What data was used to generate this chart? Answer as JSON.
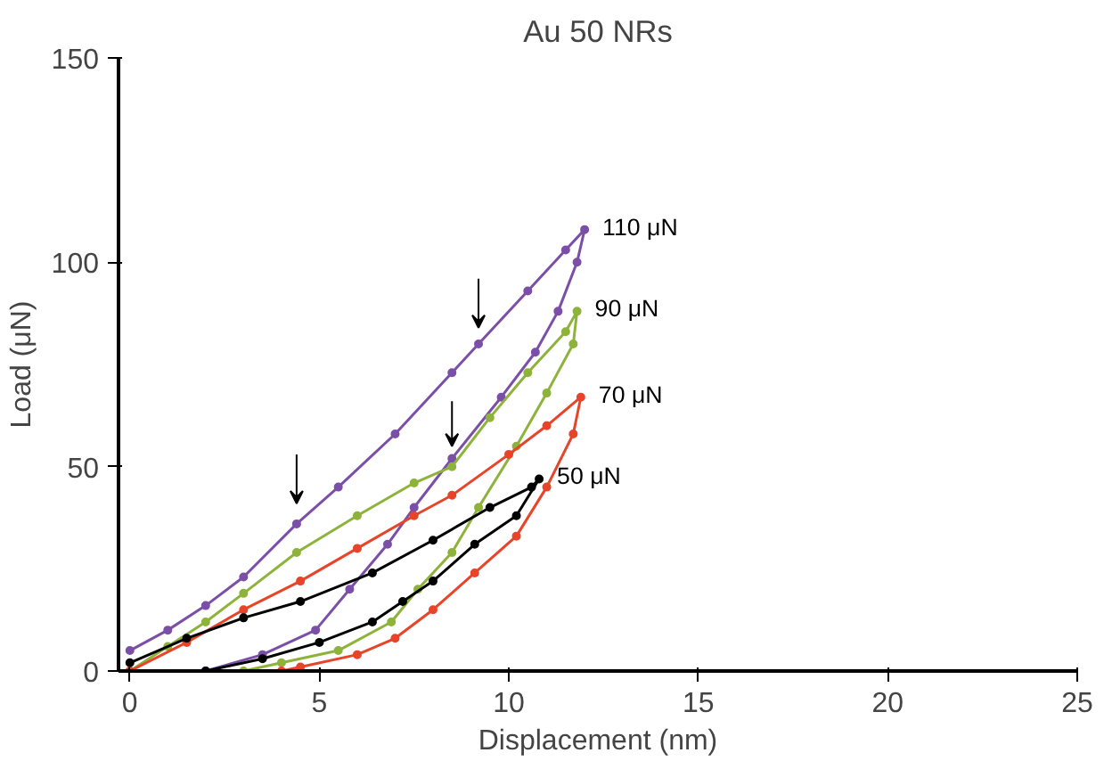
{
  "chart_data": {
    "type": "line",
    "title": "Au 50 NRs",
    "xlabel": "Displacement (nm)",
    "ylabel": "Load (μN)",
    "xlim": [
      -0.3,
      25
    ],
    "xticks": [
      0,
      5,
      10,
      15,
      20,
      25
    ],
    "ylim": [
      0,
      150
    ],
    "yticks": [
      0,
      50,
      100,
      150
    ],
    "grid": false,
    "legend": false,
    "marker": "circle",
    "series": [
      {
        "name": "110 μN",
        "color": "#7b4fa8",
        "x": [
          0,
          1,
          2,
          3,
          4.4,
          5.5,
          7,
          8.5,
          9.2,
          10.5,
          11.5,
          12,
          11.8,
          11.3,
          10.7,
          9.8,
          8.5,
          7.5,
          6.8,
          5.8,
          4.9,
          3.5,
          2
        ],
        "values": [
          5,
          10,
          16,
          23,
          36,
          45,
          58,
          73,
          80,
          93,
          103,
          108,
          100,
          88,
          78,
          67,
          52,
          40,
          31,
          20,
          10,
          4,
          0
        ]
      },
      {
        "name": "90 μN",
        "color": "#8db33a",
        "x": [
          0,
          1,
          2,
          3,
          4.4,
          6,
          7.5,
          8.5,
          9.5,
          10.5,
          11.5,
          11.8,
          11.7,
          11,
          10.2,
          9.2,
          8.5,
          7.6,
          6.9,
          5.5,
          4,
          3
        ],
        "values": [
          0,
          6,
          12,
          19,
          29,
          38,
          46,
          50,
          62,
          73,
          83,
          88,
          80,
          68,
          55,
          40,
          29,
          20,
          12,
          5,
          2,
          0
        ]
      },
      {
        "name": "70 μN",
        "color": "#e8442a",
        "x": [
          0,
          1.5,
          3,
          4.5,
          6,
          7.5,
          8.5,
          10,
          11,
          11.9,
          11.7,
          11,
          10.2,
          9.1,
          8,
          7,
          6,
          4.5,
          4
        ],
        "values": [
          0,
          7,
          15,
          22,
          30,
          38,
          43,
          53,
          60,
          67,
          58,
          45,
          33,
          24,
          15,
          8,
          4,
          1,
          0
        ]
      },
      {
        "name": "50 μN",
        "color": "#000000",
        "x": [
          0,
          1.5,
          3,
          4.5,
          6.4,
          8,
          9.5,
          10.6,
          10.8,
          10.2,
          9.1,
          8,
          7.2,
          6.4,
          5,
          3.5,
          2
        ],
        "values": [
          2,
          8,
          13,
          17,
          24,
          32,
          40,
          45,
          47,
          38,
          31,
          22,
          17,
          12,
          7,
          3,
          0
        ]
      }
    ]
  }
}
